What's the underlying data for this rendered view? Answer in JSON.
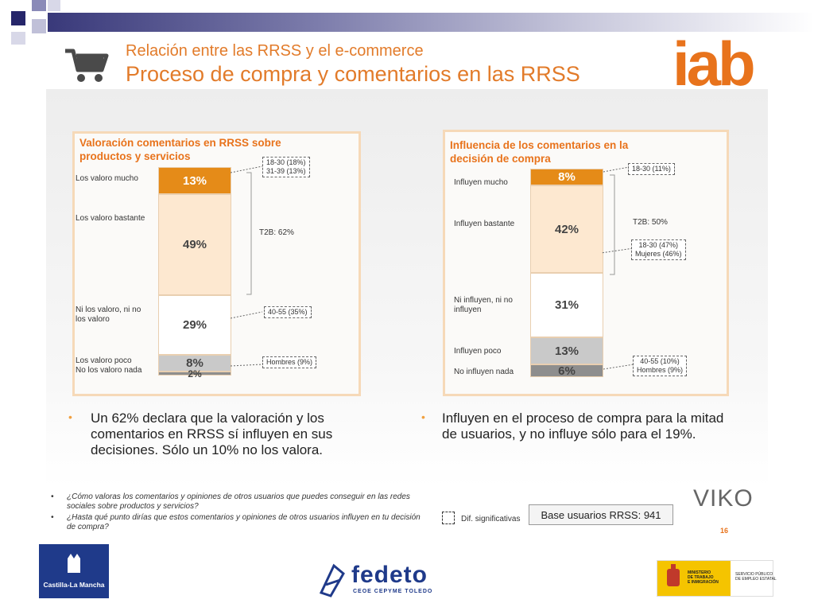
{
  "header": {
    "title_line1": "Relación entre las RRSS y el e-commerce",
    "title_line2": "Proceso de compra y comentarios en las RRSS",
    "iab_logo": "iab"
  },
  "colors": {
    "accent": "#e8731c",
    "dark_orange": "#e58b18",
    "light_peach": "#fde8d0",
    "white": "#ffffff",
    "light_gray": "#c9c9c9",
    "dark_gray": "#8e8e8e"
  },
  "chart_data": [
    {
      "type": "bar",
      "stacked": true,
      "title": "Valoración comentarios en RRSS sobre productos y servicios",
      "categories": [
        "Los valoro mucho",
        "Los valoro bastante",
        "Ni los valoro, ni no los valoro",
        "Los valoro poco",
        "No los valoro nada"
      ],
      "values": [
        13,
        49,
        29,
        8,
        2
      ],
      "labels": [
        "13%",
        "49%",
        "29%",
        "8%",
        "2%"
      ],
      "unit": "%",
      "annotations": [
        {
          "text": "18-30 (18%)\n31-39 (13%)",
          "segment": 0
        },
        {
          "text": "40-55 (35%)",
          "segment": 2
        },
        {
          "text": "Hombres (9%)",
          "segment": 3
        }
      ],
      "t2b": "T2B: 62%"
    },
    {
      "type": "bar",
      "stacked": true,
      "title": "Influencia de los comentarios en la decisión de compra",
      "categories": [
        "Influyen mucho",
        "Influyen bastante",
        "Ni influyen, ni no influyen",
        "Influyen poco",
        "No influyen nada"
      ],
      "values": [
        8,
        42,
        31,
        13,
        6
      ],
      "labels": [
        "8%",
        "42%",
        "31%",
        "13%",
        "6%"
      ],
      "unit": "%",
      "annotations": [
        {
          "text": "18-30 (11%)",
          "segment": 0
        },
        {
          "text": "18-30 (47%)\nMujeres (46%)",
          "segment": 1
        },
        {
          "text": "40-55 (10%)\nHombres (9%)",
          "segment": 4
        }
      ],
      "t2b": "T2B: 50%"
    }
  ],
  "bullets": [
    "Un 62% declara que la valoración y los comentarios en RRSS sí influyen en sus decisiones. Sólo un 10% no los valora.",
    "Influyen en el proceso de compra para la mitad de usuarios, y no influye sólo para el 19%."
  ],
  "footnotes": [
    "¿Cómo valoras los comentarios y opiniones de otros usuarios que puedes conseguir en las redes sociales sobre productos y servicios?",
    "¿Hasta qué punto dirías que estos comentarios y opiniones de otros usuarios influyen en tu decisión de compra?"
  ],
  "legend": {
    "dif_label": "Dif. significativas"
  },
  "base_label": "Base usuarios RRSS: 941",
  "page_number": "16",
  "viko_logo": "VIKO",
  "logos": {
    "castilla": "Castilla-La Mancha",
    "fedeto": "fedeto",
    "fedeto_sub": "CEOE CEPYME TOLEDO",
    "ministerio": "MINISTERIO\nDE TRABAJO\nE INMIGRACIÓN",
    "servicio": "SERVICIO PÚBLICO\nDE EMPLEO ESTATAL"
  },
  "icons": {
    "cart": "cart-icon",
    "dif": "dashed-square-icon"
  }
}
